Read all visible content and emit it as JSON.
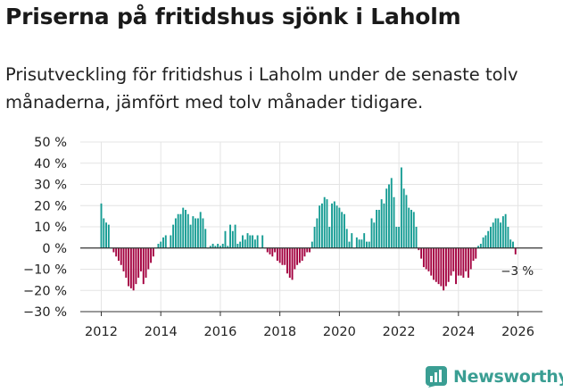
{
  "header": {
    "title": "Priserna på fritidshus sjönk i Laholm",
    "subtitle": "Prisutveckling för fritidshus i Laholm under de senaste tolv månaderna, jämfört med tolv månader tidigare."
  },
  "brand": {
    "name": "Newsworthy"
  },
  "colors": {
    "positive": "#159c93",
    "negative": "#a3003f",
    "grid": "#e4e4e4",
    "axis": "#333333",
    "text": "#222222"
  },
  "chart_data": {
    "type": "bar",
    "title": "Priserna på fritidshus sjönk i Laholm",
    "xlabel": "",
    "ylabel": "",
    "ylim": [
      -30,
      50
    ],
    "yticks": [
      50,
      40,
      30,
      20,
      10,
      0,
      -10,
      -20,
      -30
    ],
    "ytick_labels": [
      "50 %",
      "40 %",
      "30 %",
      "20 %",
      "10 %",
      "0 %",
      "−10 %",
      "−20 %",
      "−30 %"
    ],
    "xticks": [
      "2012",
      "2014",
      "2016",
      "2018",
      "2020",
      "2022",
      "2024",
      "2026"
    ],
    "x_start": "2012-01",
    "grid": true,
    "annotation": {
      "label": "−3 %",
      "target": "last"
    },
    "values": [
      21,
      14,
      12,
      11,
      0,
      -2,
      -4,
      -6,
      -8,
      -11,
      -14,
      -18,
      -19,
      -20,
      -17,
      -14,
      -11,
      -17,
      -14,
      -10,
      -7,
      -4,
      0,
      2,
      3,
      5,
      6,
      0,
      6,
      11,
      14,
      16,
      16,
      19,
      18,
      16,
      11,
      15,
      14,
      14,
      17,
      14,
      9,
      0,
      1,
      2,
      1,
      2,
      1,
      2,
      8,
      1,
      11,
      8,
      11,
      2,
      3,
      6,
      4,
      7,
      6,
      6,
      4,
      6,
      0,
      6,
      0,
      -2,
      -3,
      -4,
      -2,
      -6,
      -7,
      -8,
      -8,
      -12,
      -14,
      -15,
      -10,
      -8,
      -7,
      -6,
      -4,
      -2,
      -2,
      3,
      10,
      14,
      20,
      21,
      24,
      23,
      10,
      21,
      22,
      20,
      19,
      17,
      16,
      9,
      3,
      7,
      0,
      5,
      4,
      4,
      7,
      3,
      3,
      14,
      12,
      18,
      18,
      23,
      21,
      28,
      30,
      33,
      24,
      10,
      10,
      38,
      28,
      25,
      19,
      18,
      17,
      10,
      -1,
      -5,
      -9,
      -10,
      -11,
      -13,
      -15,
      -16,
      -17,
      -18,
      -20,
      -18,
      -16,
      -13,
      -11,
      -17,
      -13,
      -13,
      -14,
      -11,
      -14,
      -10,
      -6,
      -5,
      1,
      2,
      5,
      6,
      8,
      10,
      12,
      14,
      14,
      12,
      15,
      16,
      10,
      4,
      3,
      -3
    ]
  }
}
